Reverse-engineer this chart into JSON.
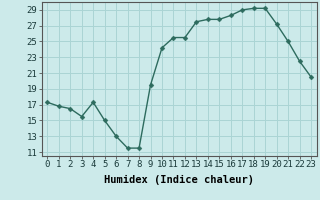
{
  "x": [
    0,
    1,
    2,
    3,
    4,
    5,
    6,
    7,
    8,
    9,
    10,
    11,
    12,
    13,
    14,
    15,
    16,
    17,
    18,
    19,
    20,
    21,
    22,
    23
  ],
  "y": [
    17.3,
    16.8,
    16.5,
    15.5,
    17.3,
    15.0,
    13.0,
    11.5,
    11.5,
    19.5,
    24.2,
    25.5,
    25.5,
    27.5,
    27.8,
    27.8,
    28.3,
    29.0,
    29.2,
    29.2,
    27.2,
    25.0,
    22.5,
    20.5
  ],
  "line_color": "#2d6b5e",
  "marker": "D",
  "marker_size": 2.5,
  "bg_color": "#cceaea",
  "grid_color": "#aad4d4",
  "xlabel": "Humidex (Indice chaleur)",
  "ylim": [
    10.5,
    30
  ],
  "xlim": [
    -0.5,
    23.5
  ],
  "yticks": [
    11,
    13,
    15,
    17,
    19,
    21,
    23,
    25,
    27,
    29
  ],
  "xticks": [
    0,
    1,
    2,
    3,
    4,
    5,
    6,
    7,
    8,
    9,
    10,
    11,
    12,
    13,
    14,
    15,
    16,
    17,
    18,
    19,
    20,
    21,
    22,
    23
  ],
  "xtick_labels": [
    "0",
    "1",
    "2",
    "3",
    "4",
    "5",
    "6",
    "7",
    "8",
    "9",
    "10",
    "11",
    "12",
    "13",
    "14",
    "15",
    "16",
    "17",
    "18",
    "19",
    "20",
    "21",
    "22",
    "23"
  ],
  "xlabel_fontsize": 7.5,
  "tick_fontsize": 6.5,
  "line_width": 1.0
}
